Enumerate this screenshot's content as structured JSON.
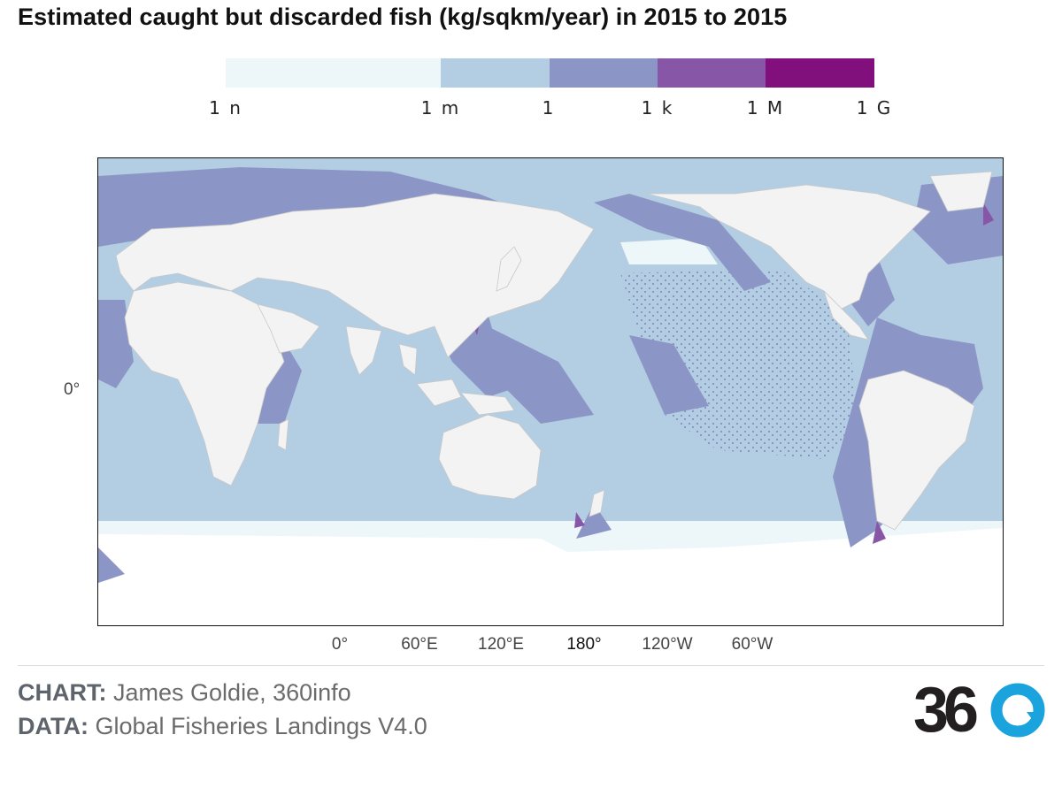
{
  "title": "Estimated caught but discarded fish (kg/sqkm/year) in 2015 to 2015",
  "legend": {
    "ticks": [
      "1 n",
      "1 m",
      "1",
      "1 k",
      "1 M",
      "1 G"
    ],
    "bins": [
      {
        "from": "1 n",
        "to": "1 m",
        "color": "#edf7fa"
      },
      {
        "from": "1 m",
        "to": "1",
        "color": "#b3cde3"
      },
      {
        "from": "1",
        "to": "1 k",
        "color": "#8c96c6"
      },
      {
        "from": "1 k",
        "to": "1 M",
        "color": "#8856a7"
      },
      {
        "from": "1 M",
        "to": "1 G",
        "color": "#810f7c"
      }
    ]
  },
  "map": {
    "latitude_labels": [
      "0°"
    ],
    "longitude_labels": [
      "0°",
      "60°E",
      "120°E",
      "180°",
      "120°W",
      "60°W"
    ],
    "projection": "equirectangular, Pacific-centred",
    "ocean_color": "#b3cde3",
    "coastal_color": "#8c96c6",
    "land_color": "#f3f3f3"
  },
  "credits": {
    "chart_label": "CHART:",
    "chart_value": "James Goldie, 360info",
    "data_label": "DATA:",
    "data_value": "Global Fisheries Landings V4.0"
  },
  "logo": {
    "text": "360",
    "accent_color": "#1aa3dd",
    "dark_color": "#231f20"
  }
}
